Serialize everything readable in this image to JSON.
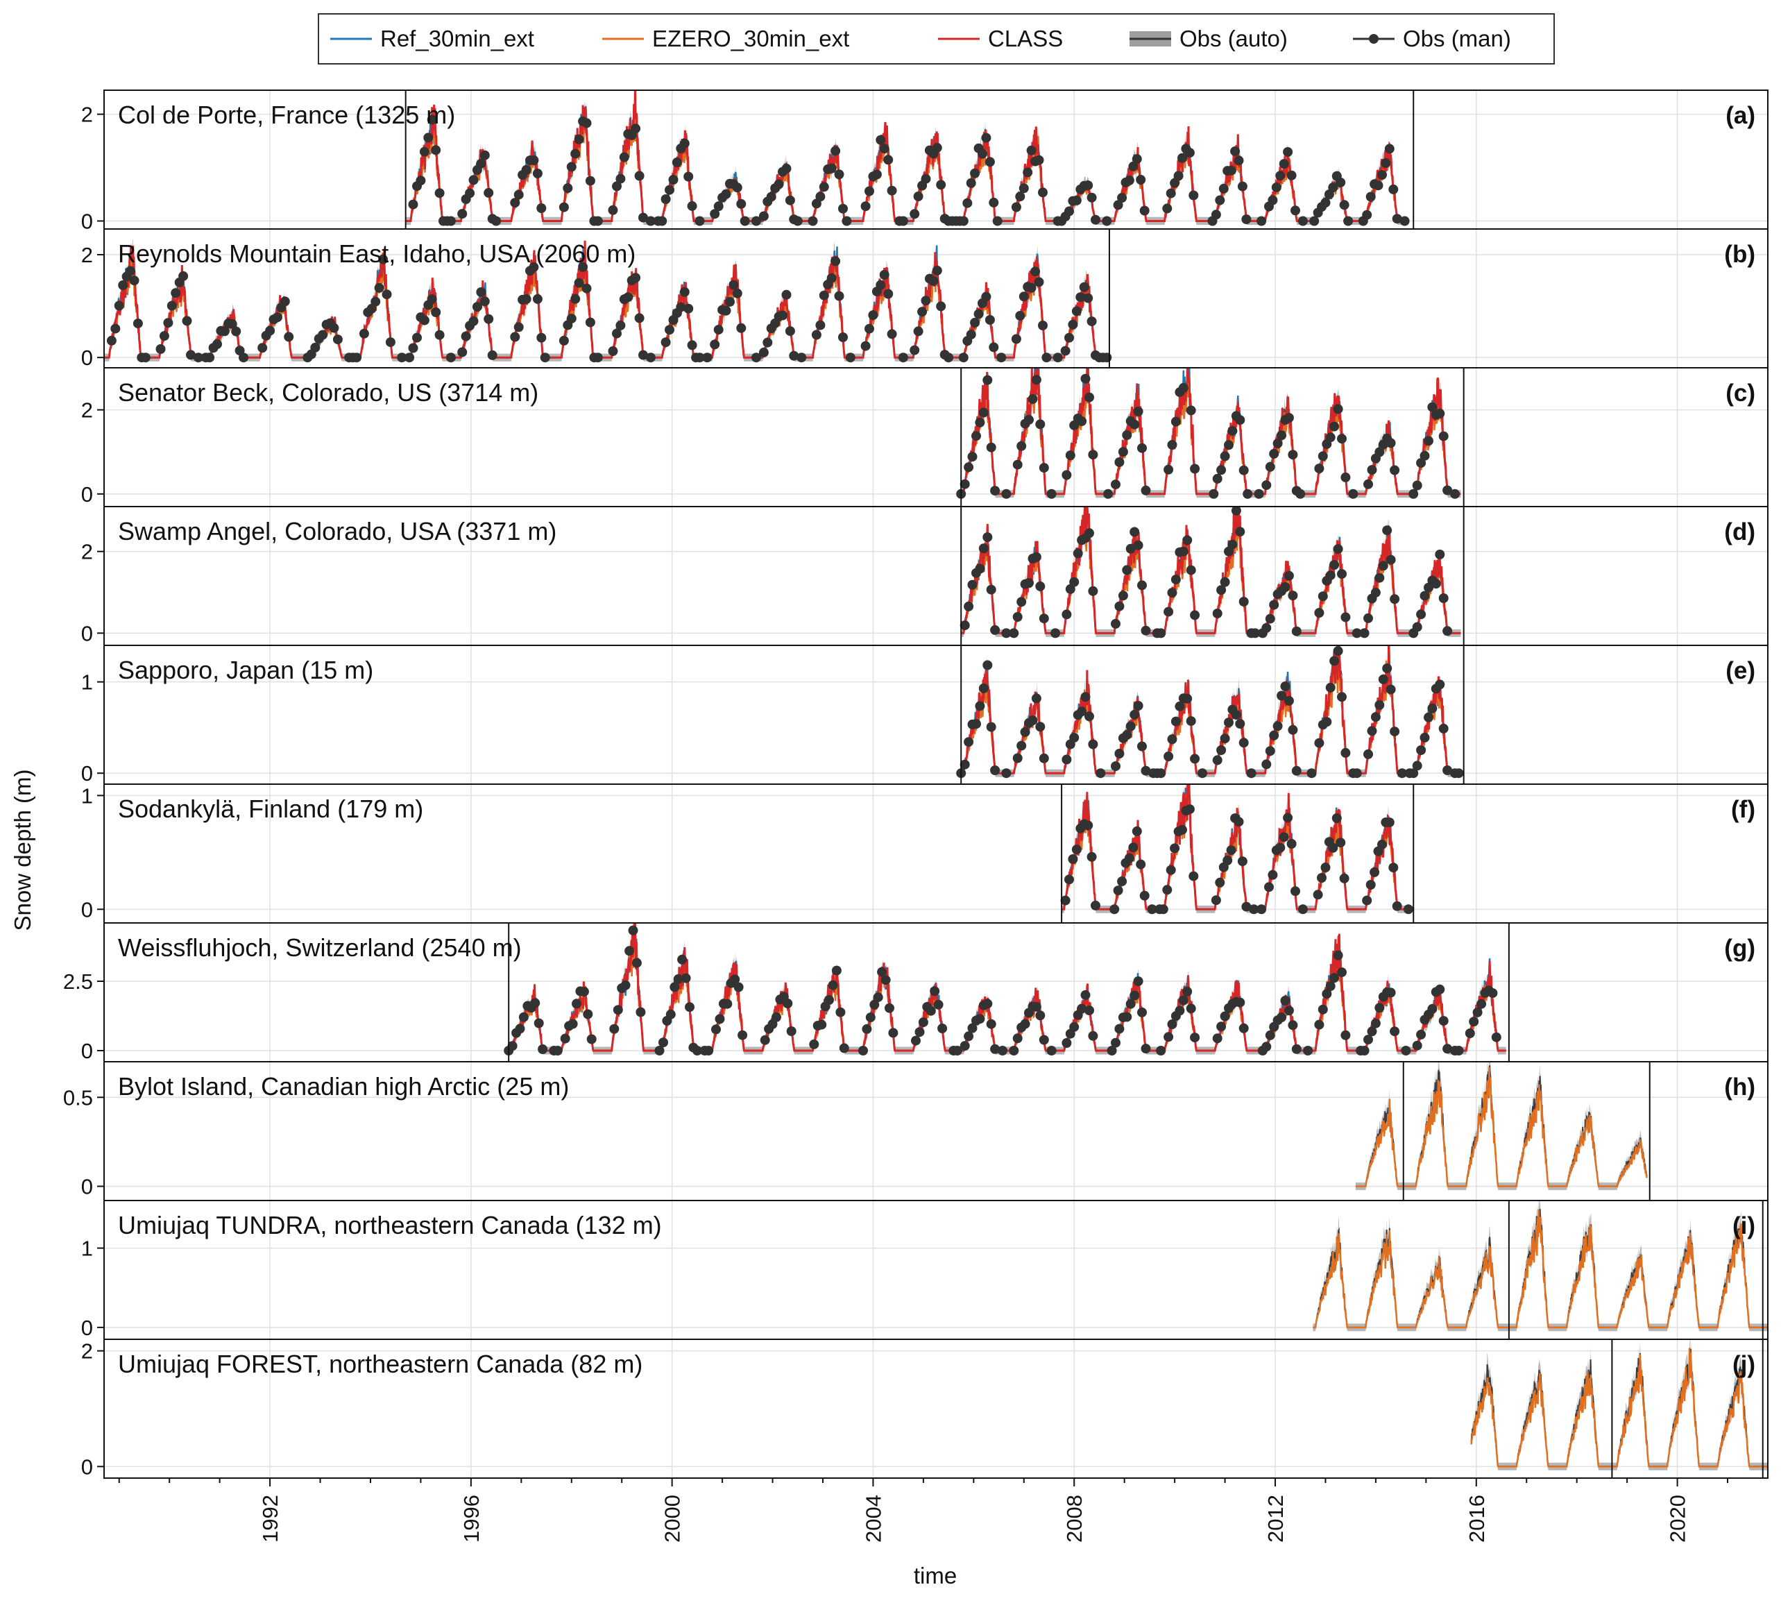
{
  "chart_data": {
    "type": "line",
    "xlabel": "time",
    "ylabel": "Snow depth (m)",
    "xlim": [
      1988.7,
      2021.8
    ],
    "x_ticks": [
      1992,
      1996,
      2000,
      2004,
      2008,
      2012,
      2016,
      2020
    ],
    "grid": true,
    "legend": {
      "placement": "top-center",
      "entries": [
        {
          "label": "Ref_30min_ext",
          "color": "#1f77b4",
          "style": "line"
        },
        {
          "label": "EZERO_30min_ext",
          "color": "#e07020",
          "style": "line"
        },
        {
          "label": "CLASS",
          "color": "#d62728",
          "style": "line"
        },
        {
          "label": "Obs (auto)",
          "color": "#9e9e9e",
          "style": "band"
        },
        {
          "label": "Obs (man)",
          "color": "#333333",
          "style": "line-marker"
        }
      ]
    },
    "panels": [
      {
        "id": "a",
        "letter": "(a)",
        "title": "Col de Porte, France (1325 m)",
        "ylim": [
          -0.15,
          2.45
        ],
        "y_ticks": [
          0,
          2
        ],
        "data_start": 1994.7,
        "data_end": 2014.6,
        "vlines": [
          1994.7,
          2014.75
        ],
        "series_present": [
          "Ref_30min_ext",
          "EZERO_30min_ext",
          "CLASS",
          "Obs (auto)",
          "Obs (man)"
        ],
        "winter_peaks": [
          1.8,
          1.25,
          1.3,
          2.0,
          2.0,
          1.5,
          0.8,
          1.0,
          1.3,
          1.6,
          1.5,
          1.6,
          1.5,
          0.7,
          1.2,
          1.4,
          1.3,
          1.15,
          0.8,
          1.3,
          2.3,
          1.7
        ]
      },
      {
        "id": "b",
        "letter": "(b)",
        "title": "Reynolds Mountain East, Idaho, USA (2060 m)",
        "ylim": [
          -0.2,
          2.5
        ],
        "y_ticks": [
          0,
          2
        ],
        "data_start": 1988.7,
        "data_end": 2008.7,
        "vlines": [
          2008.7
        ],
        "series_present": [
          "Ref_30min_ext",
          "EZERO_30min_ext",
          "CLASS",
          "Obs (auto)",
          "Obs (man)"
        ],
        "winter_peaks": [
          1.9,
          1.5,
          0.8,
          1.1,
          0.7,
          1.8,
          1.3,
          1.3,
          1.8,
          1.9,
          1.6,
          1.3,
          1.6,
          1.1,
          1.9,
          1.6,
          1.8,
          1.2,
          1.9,
          1.4,
          1.8
        ]
      },
      {
        "id": "c",
        "letter": "(c)",
        "title": "Senator Beck, Colorado, US (3714 m)",
        "ylim": [
          -0.3,
          3.0
        ],
        "y_ticks": [
          0,
          2
        ],
        "data_start": 2005.75,
        "data_end": 2015.7,
        "vlines": [
          2005.75,
          2015.75
        ],
        "series_present": [
          "Ref_30min_ext",
          "EZERO_30min_ext",
          "CLASS",
          "Obs (auto)",
          "Obs (man)"
        ],
        "winter_peaks": [
          2.4,
          2.9,
          2.6,
          2.3,
          2.9,
          1.9,
          2.1,
          2.2,
          1.5
        ]
      },
      {
        "id": "d",
        "letter": "(d)",
        "title": "Swamp Angel, Colorado, USA (3371 m)",
        "ylim": [
          -0.3,
          3.1
        ],
        "y_ticks": [
          0,
          2
        ],
        "data_start": 2005.75,
        "data_end": 2015.7,
        "vlines": [
          2005.75,
          2015.75
        ],
        "series_present": [
          "Ref_30min_ext",
          "EZERO_30min_ext",
          "CLASS",
          "Obs (auto)",
          "Obs (man)"
        ],
        "winter_peaks": [
          2.2,
          1.9,
          2.9,
          2.3,
          2.3,
          2.8,
          1.5,
          2.1,
          2.3,
          1.7
        ]
      },
      {
        "id": "e",
        "letter": "(e)",
        "title": "Sapporo, Japan (15 m)",
        "ylim": [
          -0.12,
          1.4
        ],
        "y_ticks": [
          0,
          1
        ],
        "data_start": 2005.75,
        "data_end": 2015.7,
        "vlines": [
          2005.75,
          2015.75
        ],
        "series_present": [
          "Ref_30min_ext",
          "EZERO_30min_ext",
          "CLASS",
          "Obs (auto)",
          "Obs (man)"
        ],
        "winter_peaks": [
          1.0,
          0.8,
          0.9,
          0.7,
          0.85,
          0.85,
          0.95,
          1.3,
          1.2,
          0.95
        ]
      },
      {
        "id": "f",
        "letter": "(f)",
        "title": "Sodankylä, Finland (179 m)",
        "ylim": [
          -0.12,
          1.1
        ],
        "y_ticks": [
          0,
          1
        ],
        "data_start": 2007.75,
        "data_end": 2014.7,
        "vlines": [
          2007.75,
          2014.75
        ],
        "series_present": [
          "Ref_30min_ext",
          "EZERO_30min_ext",
          "CLASS",
          "Obs (auto)",
          "Obs (man)"
        ],
        "winter_peaks": [
          0.9,
          0.65,
          1.0,
          0.75,
          0.85,
          0.8,
          0.75
        ]
      },
      {
        "id": "g",
        "letter": "(g)",
        "title": "Weissfluhjoch, Switzerland (2540 m)",
        "ylim": [
          -0.4,
          4.6
        ],
        "y_ticks": [
          0,
          2.5
        ],
        "data_start": 1996.75,
        "data_end": 2016.6,
        "vlines": [
          1996.75,
          2016.65
        ],
        "series_present": [
          "Ref_30min_ext",
          "EZERO_30min_ext",
          "CLASS",
          "Obs (auto)",
          "Obs (man)"
        ],
        "winter_peaks": [
          1.9,
          2.1,
          3.9,
          3.2,
          2.9,
          2.1,
          2.6,
          2.9,
          2.2,
          1.8,
          1.9,
          1.9,
          2.4,
          2.3,
          2.2,
          1.8,
          3.7,
          2.2,
          2.0,
          2.7,
          2.0
        ]
      },
      {
        "id": "h",
        "letter": "(h)",
        "title": "Bylot Island, Canadian high Arctic (25 m)",
        "ylim": [
          -0.08,
          0.7
        ],
        "y_ticks": [
          0,
          0.5
        ],
        "data_start": 2013.6,
        "data_end": 2019.4,
        "vlines": [
          2014.55,
          2019.45
        ],
        "series_present": [
          "EZERO_30min_ext",
          "Obs (auto)"
        ],
        "winter_peaks": [
          0.25,
          0.45,
          0.6,
          0.6,
          0.55,
          0.4
        ]
      },
      {
        "id": "i",
        "letter": "(i)",
        "title": "Umiujaq TUNDRA, northeastern Canada (132 m)",
        "ylim": [
          -0.15,
          1.6
        ],
        "y_ticks": [
          0,
          1
        ],
        "data_start": 2012.75,
        "data_end": 2021.8,
        "vlines": [
          2016.65,
          2021.7
        ],
        "series_present": [
          "EZERO_30min_ext",
          "Obs (auto)"
        ],
        "winter_peaks": [
          1.1,
          1.2,
          0.8,
          1.0,
          1.4,
          1.3,
          0.9,
          1.1,
          1.3
        ]
      },
      {
        "id": "j",
        "letter": "(j)",
        "title": "Umiujaq FOREST, northeastern Canada (82 m)",
        "ylim": [
          -0.2,
          2.2
        ],
        "y_ticks": [
          0,
          2
        ],
        "data_start": 2015.9,
        "data_end": 2021.8,
        "vlines": [
          2018.7,
          2021.7
        ],
        "series_present": [
          "EZERO_30min_ext",
          "Obs (auto)"
        ],
        "winter_peaks": [
          1.7,
          1.6,
          1.7,
          1.8,
          1.9,
          1.6
        ]
      }
    ]
  }
}
